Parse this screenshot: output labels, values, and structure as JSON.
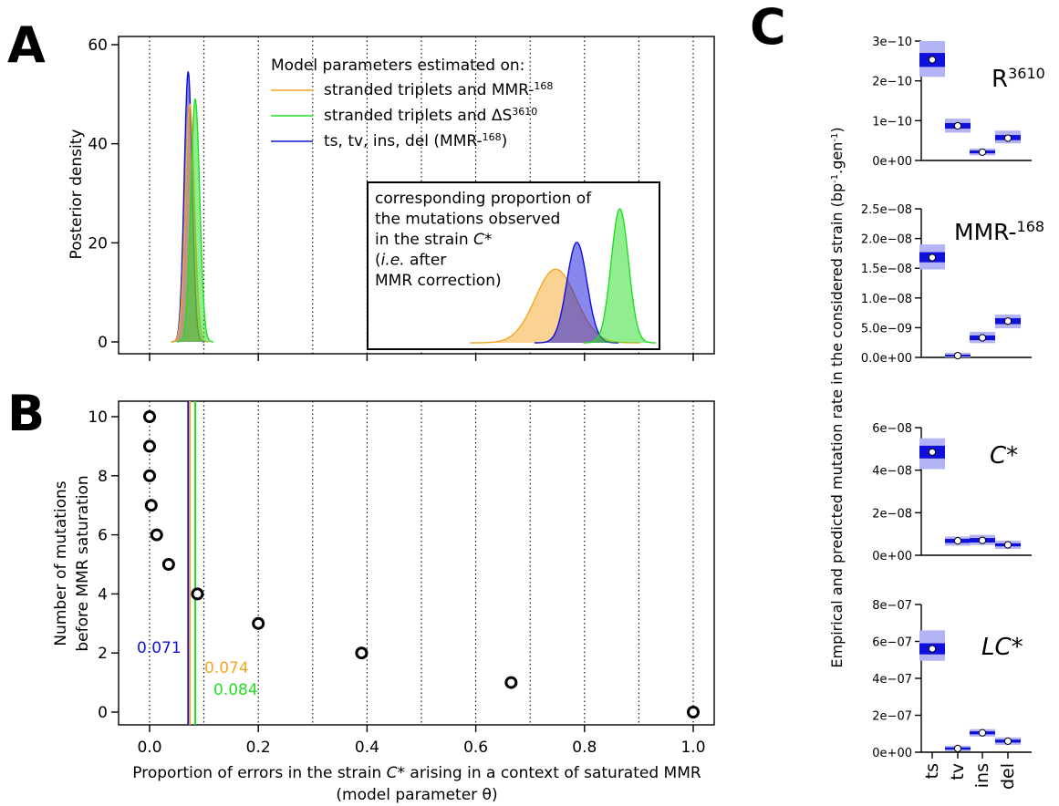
{
  "colors": {
    "orange": "#F5A623",
    "green": "#22DD22",
    "blue": "#1010DD",
    "ci_light": "#B3B3F5",
    "ci_dark": "#1010DD",
    "purple": "#6A3A8A"
  },
  "panel_labels": {
    "A": "A",
    "B": "B",
    "C": "C"
  },
  "chart_data": [
    {
      "id": "A",
      "type": "area",
      "ylabel": "Posterior density",
      "xlim": [
        0,
        1
      ],
      "ylim": [
        0,
        60
      ],
      "yticks": [
        "0",
        "20",
        "40",
        "60"
      ],
      "grid_x": [
        0,
        0.1,
        0.2,
        0.3,
        0.4,
        0.5,
        0.6,
        0.7,
        0.8,
        0.9,
        1.0
      ],
      "legend": {
        "title": "Model parameters estimated on:",
        "entries": [
          {
            "pre": "stranded triplets and MMR-",
            "sup": "168",
            "post": "",
            "color": "orange"
          },
          {
            "pre": "stranded triplets and ΔS",
            "sup": "3610",
            "post": "",
            "color": "green"
          },
          {
            "pre": "ts, tv, ins, del (MMR-",
            "sup": "168",
            "post": ")",
            "color": "blue"
          }
        ]
      },
      "series": [
        {
          "color": "blue",
          "mean": 0.071,
          "sd": 0.0073,
          "peak": 54.5
        },
        {
          "color": "orange",
          "mean": 0.074,
          "sd": 0.0083,
          "peak": 48
        },
        {
          "color": "green",
          "mean": 0.084,
          "sd": 0.0082,
          "peak": 49
        }
      ],
      "inset": {
        "lines": [
          [
            "corresponding proportion of"
          ],
          [
            "the mutations observed"
          ],
          [
            "in the strain ",
            {
              "i": "C*"
            }
          ],
          [
            "(",
            {
              "i": "i.e."
            },
            " after"
          ],
          [
            "MMR correction)"
          ]
        ],
        "series": [
          {
            "color": "orange",
            "mean": 0.747,
            "sd": 0.0375,
            "peak": 0.55
          },
          {
            "color": "blue",
            "mean": 0.786,
            "sd": 0.0185,
            "peak": 0.75
          },
          {
            "color": "green",
            "mean": 0.865,
            "sd": 0.016,
            "peak": 1.0
          }
        ]
      }
    },
    {
      "id": "B",
      "type": "scatter",
      "xlabel_lines": [
        [
          "Proportion of errors in the strain ",
          {
            "i": "C*"
          },
          " arising in a context of saturated MMR"
        ],
        [
          "(model parameter θ)"
        ]
      ],
      "ylabel_lines": [
        "Number of mutations",
        "before MMR saturation"
      ],
      "xlim": [
        0,
        1
      ],
      "ylim": [
        0,
        10
      ],
      "xticks": [
        "0.0",
        "0.2",
        "0.4",
        "0.6",
        "0.8",
        "1.0"
      ],
      "yticks": [
        "0",
        "2",
        "4",
        "6",
        "8",
        "10"
      ],
      "grid_x": [
        0,
        0.1,
        0.2,
        0.3,
        0.4,
        0.5,
        0.6,
        0.7,
        0.8,
        0.9,
        1.0
      ],
      "points": [
        [
          0.0,
          10
        ],
        [
          0.0,
          9
        ],
        [
          0.0,
          8
        ],
        [
          0.003,
          7
        ],
        [
          0.013,
          6
        ],
        [
          0.035,
          5
        ],
        [
          0.088,
          4
        ],
        [
          0.2,
          3
        ],
        [
          0.39,
          2
        ],
        [
          0.665,
          1
        ],
        [
          1.0,
          0
        ]
      ],
      "vlines": [
        {
          "x": 0.071,
          "color": "blue",
          "label": "0.071"
        },
        {
          "x": 0.074,
          "color": "orange",
          "label": "0.074"
        },
        {
          "x": 0.084,
          "color": "green",
          "label": "0.084"
        }
      ]
    },
    {
      "id": "C",
      "type": "scatter",
      "ylabel": "Empirical and predicted mutation rate in the considered strain (bp",
      "ylabel_sup1": "-1",
      "ylabel_mid": ".gen",
      "ylabel_sup2": "-1",
      "ylabel_end": ")",
      "categories": [
        "ts",
        "tv",
        "ins",
        "del"
      ],
      "panels": [
        {
          "label_pre": "R",
          "label_sup": "3610",
          "label_italic": false,
          "yticks": [
            {
              "v": 0,
              "t": "0e+00"
            },
            {
              "v": 1e-10,
              "t": "1e−10"
            },
            {
              "v": 2e-10,
              "t": "2e−10"
            },
            {
              "v": 3e-10,
              "t": "3e−10"
            }
          ],
          "ylim": [
            0,
            3e-10
          ],
          "values": [
            2.53e-10,
            8.7e-11,
            2.1e-11,
            5.6e-11
          ],
          "ci_outer": [
            [
              2.1e-10,
              3e-10
            ],
            [
              7e-11,
              1.05e-10
            ],
            [
              1.3e-11,
              3e-11
            ],
            [
              4.3e-11,
              7.5e-11
            ]
          ],
          "ci_inner": [
            [
              2.35e-10,
              2.7e-10
            ],
            [
              8e-11,
              9.4e-11
            ],
            [
              1.8e-11,
              2.5e-11
            ],
            [
              5.1e-11,
              6.4e-11
            ]
          ]
        },
        {
          "label_pre": "MMR-",
          "label_sup": "168",
          "label_italic": false,
          "yticks": [
            {
              "v": 0,
              "t": "0.0e+00"
            },
            {
              "v": 5e-09,
              "t": "5.0e−09"
            },
            {
              "v": 1e-08,
              "t": "1.0e−08"
            },
            {
              "v": 1.5e-08,
              "t": "1.5e−08"
            },
            {
              "v": 2e-08,
              "t": "2.0e−08"
            },
            {
              "v": 2.5e-08,
              "t": "2.5e−08"
            }
          ],
          "ylim": [
            0,
            2.5e-08
          ],
          "values": [
            1.68e-08,
            3e-10,
            3.3e-09,
            6.1e-09
          ],
          "ci_outer": [
            [
              1.48e-08,
              1.9e-08
            ],
            [
              0,
              8e-10
            ],
            [
              2.4e-09,
              4.3e-09
            ],
            [
              4.9e-09,
              7.2e-09
            ]
          ],
          "ci_inner": [
            [
              1.6e-08,
              1.77e-08
            ],
            [
              1.5e-10,
              4.5e-10
            ],
            [
              2.9e-09,
              3.7e-09
            ],
            [
              5.6e-09,
              6.6e-09
            ]
          ]
        },
        {
          "label_pre": "C*",
          "label_sup": "",
          "label_italic": true,
          "yticks": [
            {
              "v": 0,
              "t": "0e+00"
            },
            {
              "v": 2e-08,
              "t": "2e−08"
            },
            {
              "v": 4e-08,
              "t": "4e−08"
            },
            {
              "v": 6e-08,
              "t": "6e−08"
            }
          ],
          "ylim": [
            0,
            6e-08
          ],
          "values": [
            4.85e-08,
            6.8e-09,
            7e-09,
            4.9e-09
          ],
          "ci_outer": [
            [
              4.05e-08,
              5.5e-08
            ],
            [
              4.5e-09,
              8.8e-09
            ],
            [
              4.8e-09,
              9.6e-09
            ],
            [
              3e-09,
              6.8e-09
            ]
          ],
          "ci_inner": [
            [
              4.55e-08,
              5.15e-08
            ],
            [
              5.8e-09,
              7.7e-09
            ],
            [
              6e-09,
              8.1e-09
            ],
            [
              4.2e-09,
              5.6e-09
            ]
          ]
        },
        {
          "label_pre": "LC*",
          "label_sup": "",
          "label_italic": true,
          "yticks": [
            {
              "v": 0,
              "t": "0e+00"
            },
            {
              "v": 2e-07,
              "t": "2e−07"
            },
            {
              "v": 4e-07,
              "t": "4e−07"
            },
            {
              "v": 6e-07,
              "t": "6e−07"
            },
            {
              "v": 8e-07,
              "t": "8e−07"
            }
          ],
          "ylim": [
            0,
            8e-07
          ],
          "values": [
            5.6e-07,
            2e-08,
            1.05e-07,
            6e-08
          ],
          "ci_outer": [
            [
              4.95e-07,
              6.6e-07
            ],
            [
              5e-09,
              3.5e-08
            ],
            [
              8.5e-08,
              1.25e-07
            ],
            [
              4e-08,
              8e-08
            ]
          ],
          "ci_inner": [
            [
              5.3e-07,
              5.9e-07
            ],
            [
              1.4e-08,
              2.6e-08
            ],
            [
              9.7e-08,
              1.13e-07
            ],
            [
              5.2e-08,
              6.8e-08
            ]
          ]
        }
      ]
    }
  ]
}
